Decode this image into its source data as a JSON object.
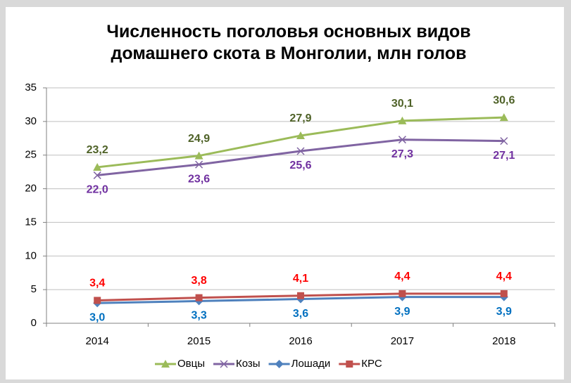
{
  "chart_data": {
    "type": "line",
    "title": "Численность поголовья основных видов домашнего скота в Монголии, млн голов",
    "categories": [
      "2014",
      "2015",
      "2016",
      "2017",
      "2018"
    ],
    "series": [
      {
        "name": "Овцы",
        "color": "#9bbb59",
        "label_color": "#4f6228",
        "marker": "triangle",
        "label_position": "above",
        "values": [
          23.2,
          24.9,
          27.9,
          30.1,
          30.6
        ],
        "value_labels": [
          "23,2",
          "24,9",
          "27,9",
          "30,1",
          "30,6"
        ]
      },
      {
        "name": "Козы",
        "color": "#8064a2",
        "label_color": "#7030a0",
        "marker": "x",
        "label_position": "below",
        "values": [
          22.0,
          23.6,
          25.6,
          27.3,
          27.1
        ],
        "value_labels": [
          "22,0",
          "23,6",
          "25,6",
          "27,3",
          "27,1"
        ]
      },
      {
        "name": "Лошади",
        "color": "#4f81bd",
        "label_color": "#0070c0",
        "marker": "diamond",
        "label_position": "below",
        "values": [
          3.0,
          3.3,
          3.6,
          3.9,
          3.9
        ],
        "value_labels": [
          "3,0",
          "3,3",
          "3,6",
          "3,9",
          "3,9"
        ]
      },
      {
        "name": "КРС",
        "color": "#c0504d",
        "label_color": "#ff0000",
        "marker": "square",
        "label_position": "above",
        "values": [
          3.4,
          3.8,
          4.1,
          4.4,
          4.4
        ],
        "value_labels": [
          "3,4",
          "3,8",
          "4,1",
          "4,4",
          "4,4"
        ]
      }
    ],
    "ylim": [
      0,
      35
    ],
    "yticks": [
      0,
      5,
      10,
      15,
      20,
      25,
      30,
      35
    ],
    "grid": true,
    "legend": "bottom"
  }
}
